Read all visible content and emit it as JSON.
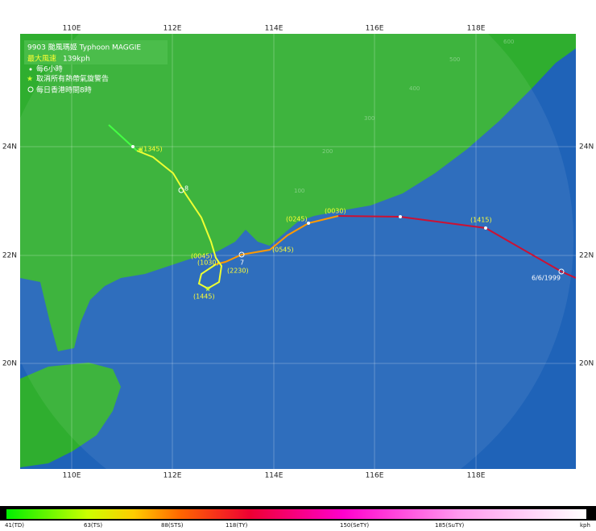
{
  "title": "9903 颱風瑪姬 Typhoon MAGGIE",
  "max_wind": {
    "label": "最大風速",
    "value": "139kph"
  },
  "legend": [
    "每6小時",
    "取消所有熱帶氣旋警告",
    "每日香港時間8時"
  ],
  "longitudes": [
    "110E",
    "112E",
    "114E",
    "116E",
    "118E"
  ],
  "latitudes": [
    "24N",
    "22N",
    "20N"
  ],
  "range_rings": [
    "100",
    "200",
    "300",
    "400",
    "500",
    "600"
  ],
  "track_labels": [
    "(1345)",
    "8",
    "(0045)",
    "(1030)",
    "7",
    "(2230)",
    "(1445)",
    "(0545)",
    "(0245)",
    "(0030)",
    "(1415)",
    "6/6/1999"
  ],
  "intensity_scale": [
    "41(TD)",
    "63(TS)",
    "88(STS)",
    "118(TY)",
    "150(SeTY)",
    "185(SuTY)",
    "kph"
  ]
}
